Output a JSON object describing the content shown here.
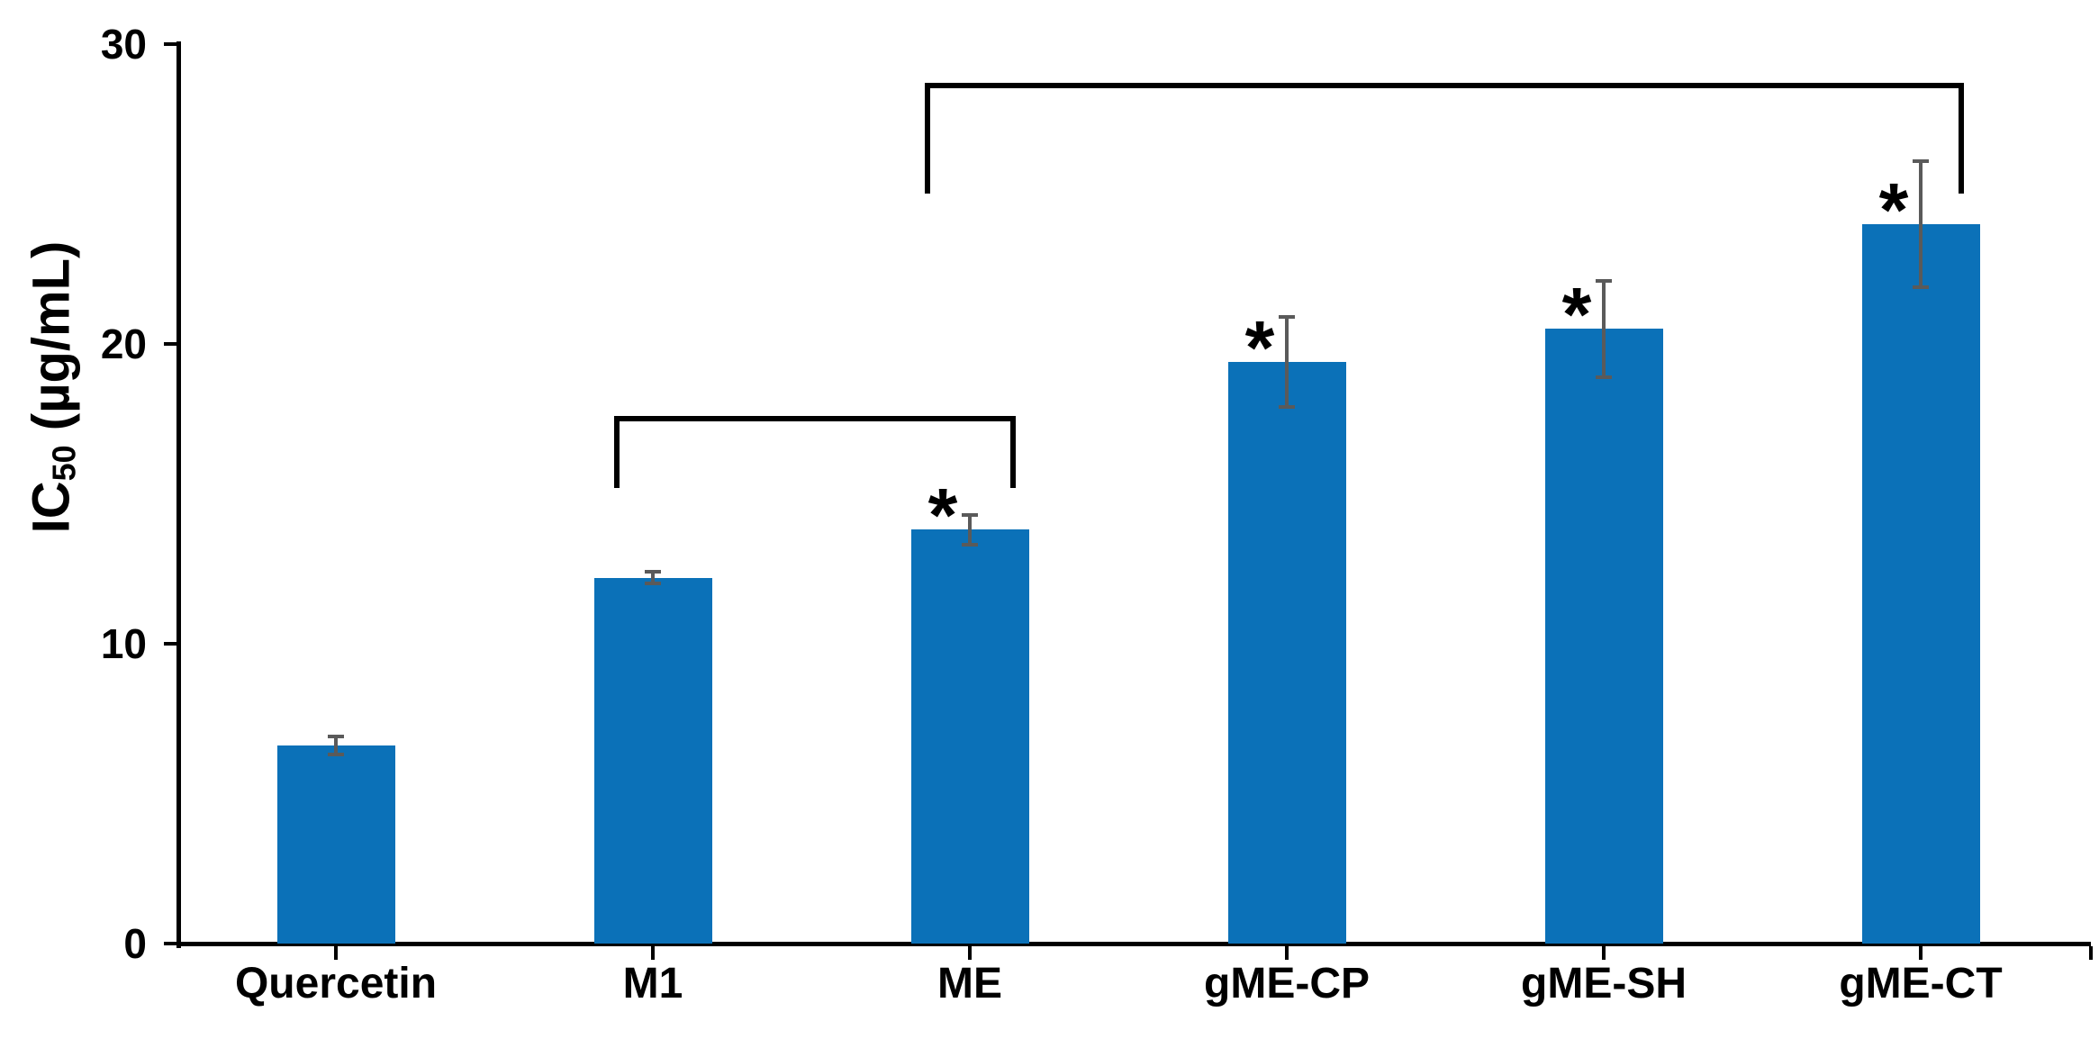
{
  "figure": {
    "background_color": "#ffffff"
  },
  "chart_data": {
    "type": "bar",
    "title": "",
    "xlabel": "",
    "ylabel": "IC50 (µg/mL)",
    "ylabel_rich": {
      "prefix": "IC",
      "subscript": "50",
      "suffix": " (µg/mL)"
    },
    "categories": [
      "Quercetin",
      "M1",
      "ME",
      "gME-CP",
      "gME-SH",
      "gME-CT"
    ],
    "values": [
      6.6,
      12.2,
      13.8,
      19.4,
      20.5,
      24.0
    ],
    "error_bars": [
      0.3,
      0.2,
      0.5,
      1.5,
      1.6,
      2.1
    ],
    "significance_marks": [
      "",
      "",
      "*",
      "*",
      "*",
      "*"
    ],
    "ylim": [
      0,
      30
    ],
    "yticks": [
      0,
      10,
      20,
      30
    ],
    "grid": false,
    "legend": null,
    "bar_color": "#0B71B8",
    "error_color": "#5A5A5A",
    "axis_color": "#000000",
    "brackets": [
      {
        "from": "M1",
        "to": "ME",
        "top_value": 17.6,
        "end_value": 15.2
      },
      {
        "from": "ME",
        "to": "gME-CT",
        "top_value": 28.7,
        "end_value": 25.0
      }
    ]
  }
}
